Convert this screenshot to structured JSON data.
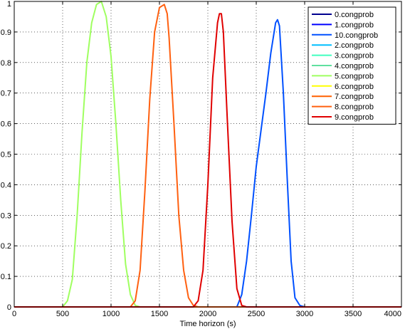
{
  "chart_data": {
    "type": "line",
    "title": "",
    "xlabel": "Time horizon (s)",
    "ylabel": "",
    "xlim": [
      0,
      4000
    ],
    "ylim": [
      0,
      1
    ],
    "grid": true,
    "legend_position": "top-right",
    "x_ticks": [
      "0",
      "500",
      "1000",
      "1500",
      "2000",
      "2500",
      "3000",
      "3500",
      "4000"
    ],
    "y_ticks": [
      "0",
      "0.1",
      "0.2",
      "0.3",
      "0.4",
      "0.5",
      "0.6",
      "0.7",
      "0.8",
      "0.9",
      "1"
    ],
    "series": [
      {
        "name": "0.congprob",
        "color": "#00008f",
        "x": [
          0,
          4000
        ],
        "y": [
          0,
          0
        ]
      },
      {
        "name": "1.congprob",
        "color": "#0000ff",
        "x": [
          0,
          4000
        ],
        "y": [
          0,
          0
        ]
      },
      {
        "name": "10.congprob",
        "color": "#0050ff",
        "x": [
          0,
          2300,
          2350,
          2400,
          2450,
          2500,
          2550,
          2600,
          2650,
          2700,
          2720,
          2740,
          2780,
          2820,
          2860,
          2900,
          2950,
          3000,
          4000
        ],
        "y": [
          0,
          0,
          0.04,
          0.15,
          0.3,
          0.46,
          0.58,
          0.7,
          0.83,
          0.93,
          0.94,
          0.92,
          0.7,
          0.42,
          0.15,
          0.03,
          0.005,
          0,
          0
        ]
      },
      {
        "name": "2.congprob",
        "color": "#00bfff",
        "x": [
          0,
          4000
        ],
        "y": [
          0,
          0
        ]
      },
      {
        "name": "3.congprob",
        "color": "#40ffbf",
        "x": [
          0,
          4000
        ],
        "y": [
          0,
          0
        ]
      },
      {
        "name": "4.congprob",
        "color": "#60e0a0",
        "x": [
          0,
          4000
        ],
        "y": [
          0,
          0
        ]
      },
      {
        "name": "5.congprob",
        "color": "#9fff60",
        "x": [
          0,
          500,
          550,
          600,
          650,
          700,
          750,
          800,
          850,
          900,
          950,
          1000,
          1050,
          1100,
          1150,
          1200,
          1250,
          1300,
          4000
        ],
        "y": [
          0,
          0,
          0.02,
          0.09,
          0.3,
          0.57,
          0.8,
          0.93,
          0.99,
          1.0,
          0.95,
          0.82,
          0.6,
          0.35,
          0.14,
          0.04,
          0.005,
          0,
          0
        ]
      },
      {
        "name": "6.congprob",
        "color": "#ffff00",
        "x": [
          0,
          4000
        ],
        "y": [
          0,
          0
        ]
      },
      {
        "name": "7.congprob",
        "color": "#ff6000",
        "x": [
          0,
          4000
        ],
        "y": [
          0,
          0
        ]
      },
      {
        "name": "8.congprob",
        "color": "#ff6010",
        "x": [
          0,
          1200,
          1250,
          1300,
          1350,
          1400,
          1450,
          1500,
          1550,
          1580,
          1600,
          1650,
          1700,
          1750,
          1800,
          1850,
          1900,
          4000
        ],
        "y": [
          0,
          0,
          0.02,
          0.12,
          0.38,
          0.68,
          0.9,
          0.98,
          0.99,
          0.96,
          0.88,
          0.6,
          0.3,
          0.12,
          0.03,
          0.005,
          0,
          0
        ]
      },
      {
        "name": "9.congprob",
        "color": "#e00000",
        "x": [
          0,
          1850,
          1900,
          1950,
          2000,
          2050,
          2100,
          2120,
          2140,
          2160,
          2200,
          2250,
          2300,
          2350,
          2400,
          4000
        ],
        "y": [
          0,
          0,
          0.02,
          0.12,
          0.4,
          0.75,
          0.93,
          0.96,
          0.96,
          0.9,
          0.62,
          0.28,
          0.06,
          0.005,
          0,
          0
        ]
      }
    ]
  }
}
